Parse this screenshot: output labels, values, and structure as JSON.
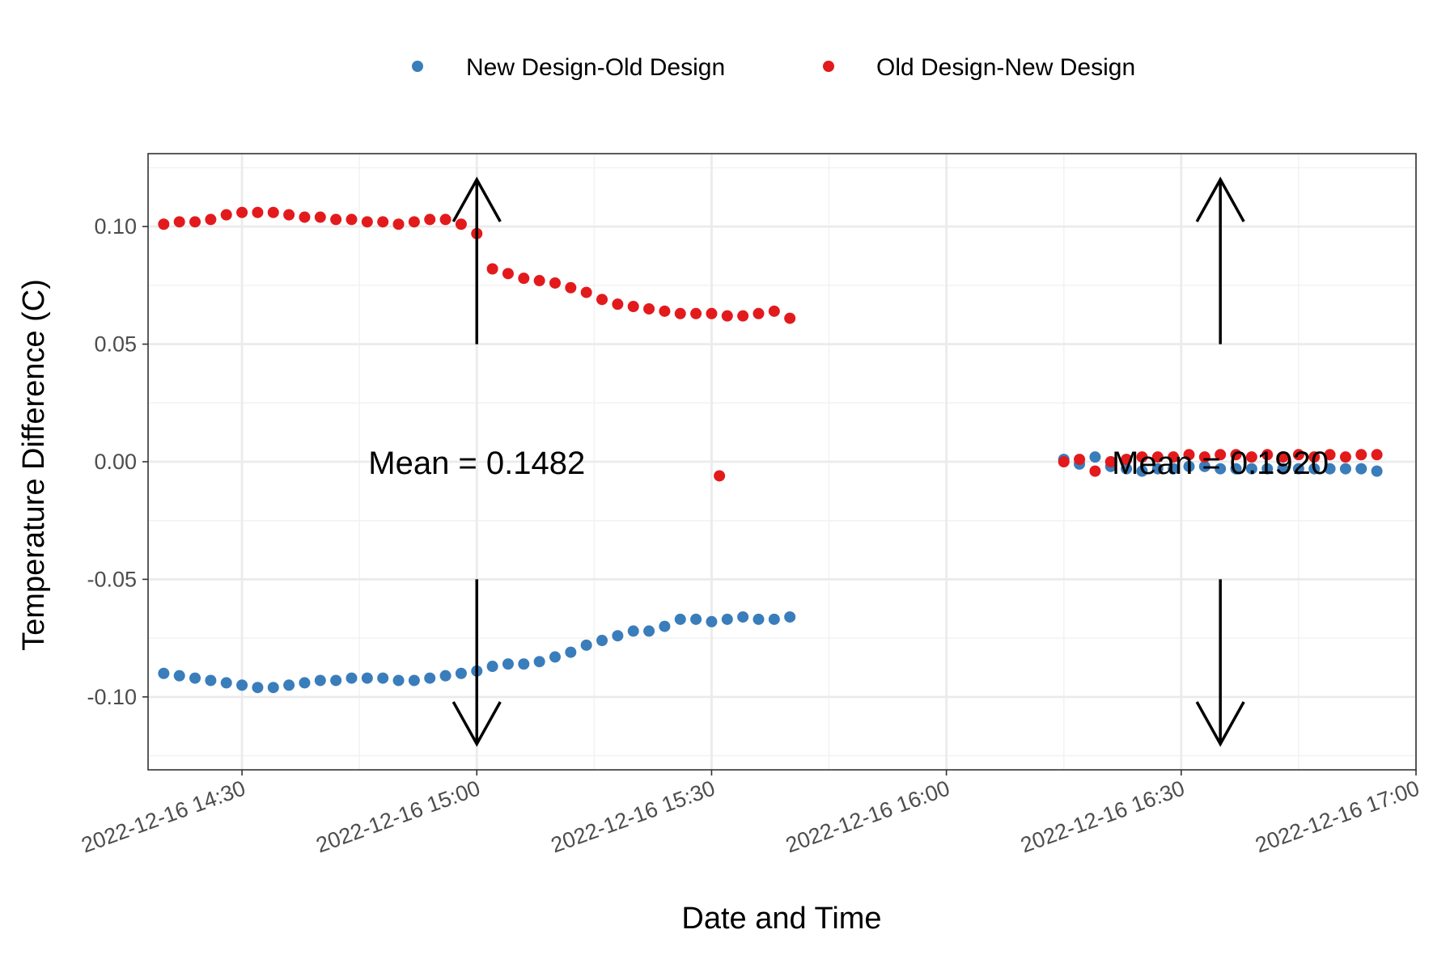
{
  "chart_data": {
    "type": "scatter",
    "xlabel": "Date and Time",
    "ylabel": "Temperature Difference (C)",
    "xlim": [
      "2022-12-16 14:18",
      "2022-12-16 17:00"
    ],
    "ylim": [
      -0.131,
      0.131
    ],
    "grid": true,
    "legend_position": "top",
    "x_ticks": [
      {
        "value": "2022-12-16 14:30",
        "label": "2022-12-16 14:30"
      },
      {
        "value": "2022-12-16 15:00",
        "label": "2022-12-16 15:00"
      },
      {
        "value": "2022-12-16 15:30",
        "label": "2022-12-16 15:30"
      },
      {
        "value": "2022-12-16 16:00",
        "label": "2022-12-16 16:00"
      },
      {
        "value": "2022-12-16 16:30",
        "label": "2022-12-16 16:30"
      },
      {
        "value": "2022-12-16 17:00",
        "label": "2022-12-16 17:00"
      }
    ],
    "y_ticks": [
      {
        "value": 0.1,
        "label": "0.10"
      },
      {
        "value": 0.05,
        "label": "0.05"
      },
      {
        "value": 0.0,
        "label": "0.00"
      },
      {
        "value": -0.05,
        "label": "-0.05"
      },
      {
        "value": -0.1,
        "label": "-0.10"
      }
    ],
    "series": [
      {
        "name": "New Design-Old Design",
        "color": "#3a7dbb",
        "points": [
          [
            "2022-12-16 14:20",
            -0.09
          ],
          [
            "2022-12-16 14:22",
            -0.091
          ],
          [
            "2022-12-16 14:24",
            -0.092
          ],
          [
            "2022-12-16 14:26",
            -0.093
          ],
          [
            "2022-12-16 14:28",
            -0.094
          ],
          [
            "2022-12-16 14:30",
            -0.095
          ],
          [
            "2022-12-16 14:32",
            -0.096
          ],
          [
            "2022-12-16 14:34",
            -0.096
          ],
          [
            "2022-12-16 14:36",
            -0.095
          ],
          [
            "2022-12-16 14:38",
            -0.094
          ],
          [
            "2022-12-16 14:40",
            -0.093
          ],
          [
            "2022-12-16 14:42",
            -0.093
          ],
          [
            "2022-12-16 14:44",
            -0.092
          ],
          [
            "2022-12-16 14:46",
            -0.092
          ],
          [
            "2022-12-16 14:48",
            -0.092
          ],
          [
            "2022-12-16 14:50",
            -0.093
          ],
          [
            "2022-12-16 14:52",
            -0.093
          ],
          [
            "2022-12-16 14:54",
            -0.092
          ],
          [
            "2022-12-16 14:56",
            -0.091
          ],
          [
            "2022-12-16 14:58",
            -0.09
          ],
          [
            "2022-12-16 15:00",
            -0.089
          ],
          [
            "2022-12-16 15:02",
            -0.087
          ],
          [
            "2022-12-16 15:04",
            -0.086
          ],
          [
            "2022-12-16 15:06",
            -0.086
          ],
          [
            "2022-12-16 15:08",
            -0.085
          ],
          [
            "2022-12-16 15:10",
            -0.083
          ],
          [
            "2022-12-16 15:12",
            -0.081
          ],
          [
            "2022-12-16 15:14",
            -0.078
          ],
          [
            "2022-12-16 15:16",
            -0.076
          ],
          [
            "2022-12-16 15:18",
            -0.074
          ],
          [
            "2022-12-16 15:20",
            -0.072
          ],
          [
            "2022-12-16 15:22",
            -0.072
          ],
          [
            "2022-12-16 15:24",
            -0.07
          ],
          [
            "2022-12-16 15:26",
            -0.067
          ],
          [
            "2022-12-16 15:28",
            -0.067
          ],
          [
            "2022-12-16 15:30",
            -0.068
          ],
          [
            "2022-12-16 15:32",
            -0.067
          ],
          [
            "2022-12-16 15:34",
            -0.066
          ],
          [
            "2022-12-16 15:36",
            -0.067
          ],
          [
            "2022-12-16 15:38",
            -0.067
          ],
          [
            "2022-12-16 15:40",
            -0.066
          ],
          [
            "2022-12-16 16:15",
            0.001
          ],
          [
            "2022-12-16 16:17",
            -0.001
          ],
          [
            "2022-12-16 16:19",
            0.002
          ],
          [
            "2022-12-16 16:21",
            -0.002
          ],
          [
            "2022-12-16 16:23",
            -0.003
          ],
          [
            "2022-12-16 16:25",
            -0.004
          ],
          [
            "2022-12-16 16:27",
            -0.003
          ],
          [
            "2022-12-16 16:29",
            -0.003
          ],
          [
            "2022-12-16 16:31",
            -0.002
          ],
          [
            "2022-12-16 16:33",
            -0.002
          ],
          [
            "2022-12-16 16:35",
            -0.003
          ],
          [
            "2022-12-16 16:37",
            -0.003
          ],
          [
            "2022-12-16 16:39",
            -0.003
          ],
          [
            "2022-12-16 16:41",
            -0.003
          ],
          [
            "2022-12-16 16:43",
            -0.003
          ],
          [
            "2022-12-16 16:45",
            -0.003
          ],
          [
            "2022-12-16 16:47",
            -0.003
          ],
          [
            "2022-12-16 16:49",
            -0.003
          ],
          [
            "2022-12-16 16:51",
            -0.003
          ],
          [
            "2022-12-16 16:53",
            -0.003
          ],
          [
            "2022-12-16 16:55",
            -0.004
          ]
        ]
      },
      {
        "name": "Old Design-New Design",
        "color": "#e31a1c",
        "points": [
          [
            "2022-12-16 14:20",
            0.101
          ],
          [
            "2022-12-16 14:22",
            0.102
          ],
          [
            "2022-12-16 14:24",
            0.102
          ],
          [
            "2022-12-16 14:26",
            0.103
          ],
          [
            "2022-12-16 14:28",
            0.105
          ],
          [
            "2022-12-16 14:30",
            0.106
          ],
          [
            "2022-12-16 14:32",
            0.106
          ],
          [
            "2022-12-16 14:34",
            0.106
          ],
          [
            "2022-12-16 14:36",
            0.105
          ],
          [
            "2022-12-16 14:38",
            0.104
          ],
          [
            "2022-12-16 14:40",
            0.104
          ],
          [
            "2022-12-16 14:42",
            0.103
          ],
          [
            "2022-12-16 14:44",
            0.103
          ],
          [
            "2022-12-16 14:46",
            0.102
          ],
          [
            "2022-12-16 14:48",
            0.102
          ],
          [
            "2022-12-16 14:50",
            0.101
          ],
          [
            "2022-12-16 14:52",
            0.102
          ],
          [
            "2022-12-16 14:54",
            0.103
          ],
          [
            "2022-12-16 14:56",
            0.103
          ],
          [
            "2022-12-16 14:58",
            0.101
          ],
          [
            "2022-12-16 15:00",
            0.097
          ],
          [
            "2022-12-16 15:02",
            0.082
          ],
          [
            "2022-12-16 15:04",
            0.08
          ],
          [
            "2022-12-16 15:06",
            0.078
          ],
          [
            "2022-12-16 15:08",
            0.077
          ],
          [
            "2022-12-16 15:10",
            0.076
          ],
          [
            "2022-12-16 15:12",
            0.074
          ],
          [
            "2022-12-16 15:14",
            0.072
          ],
          [
            "2022-12-16 15:16",
            0.069
          ],
          [
            "2022-12-16 15:18",
            0.067
          ],
          [
            "2022-12-16 15:20",
            0.066
          ],
          [
            "2022-12-16 15:22",
            0.065
          ],
          [
            "2022-12-16 15:24",
            0.064
          ],
          [
            "2022-12-16 15:26",
            0.063
          ],
          [
            "2022-12-16 15:28",
            0.063
          ],
          [
            "2022-12-16 15:30",
            0.063
          ],
          [
            "2022-12-16 15:32",
            0.062
          ],
          [
            "2022-12-16 15:34",
            0.062
          ],
          [
            "2022-12-16 15:36",
            0.063
          ],
          [
            "2022-12-16 15:38",
            0.064
          ],
          [
            "2022-12-16 15:40",
            0.061
          ],
          [
            "2022-12-16 15:31",
            -0.006
          ],
          [
            "2022-12-16 16:15",
            0.0
          ],
          [
            "2022-12-16 16:17",
            0.001
          ],
          [
            "2022-12-16 16:19",
            -0.004
          ],
          [
            "2022-12-16 16:21",
            0.0
          ],
          [
            "2022-12-16 16:23",
            0.001
          ],
          [
            "2022-12-16 16:25",
            0.002
          ],
          [
            "2022-12-16 16:27",
            0.002
          ],
          [
            "2022-12-16 16:29",
            0.002
          ],
          [
            "2022-12-16 16:31",
            0.003
          ],
          [
            "2022-12-16 16:33",
            0.002
          ],
          [
            "2022-12-16 16:35",
            0.003
          ],
          [
            "2022-12-16 16:37",
            0.003
          ],
          [
            "2022-12-16 16:39",
            0.002
          ],
          [
            "2022-12-16 16:41",
            0.003
          ],
          [
            "2022-12-16 16:43",
            0.002
          ],
          [
            "2022-12-16 16:45",
            0.003
          ],
          [
            "2022-12-16 16:47",
            0.002
          ],
          [
            "2022-12-16 16:49",
            0.003
          ],
          [
            "2022-12-16 16:51",
            0.002
          ],
          [
            "2022-12-16 16:53",
            0.003
          ],
          [
            "2022-12-16 16:55",
            0.003
          ]
        ]
      }
    ],
    "annotations": [
      {
        "text": "Mean = 0.1482",
        "x": "2022-12-16 15:00",
        "y": 0.0
      },
      {
        "text": "Mean = 0.1920",
        "x": "2022-12-16 16:35",
        "y": 0.0
      }
    ],
    "arrows": [
      {
        "x": "2022-12-16 15:00",
        "y_from": 0.05,
        "y_to": 0.12
      },
      {
        "x": "2022-12-16 15:00",
        "y_from": -0.05,
        "y_to": -0.12
      },
      {
        "x": "2022-12-16 16:35",
        "y_from": 0.05,
        "y_to": 0.12
      },
      {
        "x": "2022-12-16 16:35",
        "y_from": -0.05,
        "y_to": -0.12
      }
    ]
  }
}
